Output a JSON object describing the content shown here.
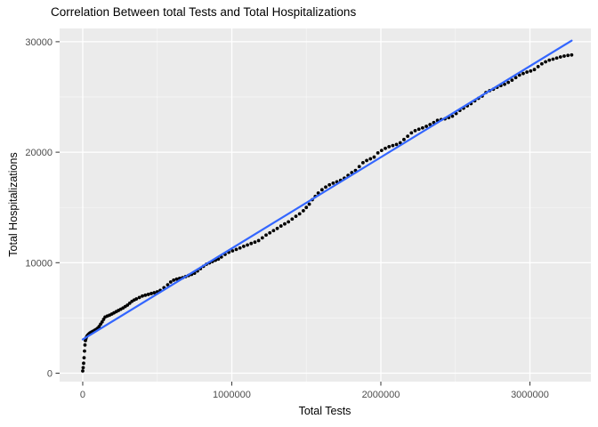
{
  "figure": {
    "title": "Correlation Between total Tests and Total Hospitalizations",
    "x_axis_title": "Total Tests",
    "y_axis_title": "Total Hospitalizations"
  },
  "colors": {
    "panel_bg": "#EBEBEB",
    "grid_major": "#FFFFFF",
    "grid_minor": "#F7F7F7",
    "point": "#000000",
    "trend_line": "#3366FF",
    "tick_text": "#4D4D4D",
    "tick_mark": "#333333"
  },
  "chart_data": {
    "type": "scatter",
    "title": "Correlation Between total Tests and Total Hospitalizations",
    "xlabel": "Total Tests",
    "ylabel": "Total Hospitalizations",
    "grid": true,
    "legend": false,
    "xlim": [
      -155000,
      3409000
    ],
    "ylim": [
      -765,
      31200
    ],
    "x_ticks": [
      {
        "value": 0,
        "label": "0"
      },
      {
        "value": 1000000,
        "label": "1000000"
      },
      {
        "value": 2000000,
        "label": "2000000"
      },
      {
        "value": 3000000,
        "label": "3000000"
      }
    ],
    "y_ticks": [
      {
        "value": 0,
        "label": "0"
      },
      {
        "value": 10000,
        "label": "10000"
      },
      {
        "value": 20000,
        "label": "20000"
      },
      {
        "value": 30000,
        "label": "30000"
      }
    ],
    "x_minor": [
      500000,
      1500000,
      2500000
    ],
    "y_minor": [
      5000,
      15000,
      25000
    ],
    "trend_line": {
      "start": [
        0,
        3050
      ],
      "end": [
        3280000,
        30100
      ]
    },
    "points": [
      [
        0,
        200
      ],
      [
        3000,
        500
      ],
      [
        6000,
        900
      ],
      [
        9000,
        1400
      ],
      [
        12000,
        2000
      ],
      [
        15000,
        2550
      ],
      [
        18000,
        2950
      ],
      [
        21000,
        3120
      ],
      [
        25000,
        3260
      ],
      [
        30000,
        3380
      ],
      [
        35000,
        3460
      ],
      [
        40000,
        3530
      ],
      [
        45000,
        3590
      ],
      [
        50000,
        3650
      ],
      [
        60000,
        3730
      ],
      [
        70000,
        3800
      ],
      [
        80000,
        3880
      ],
      [
        90000,
        3960
      ],
      [
        100000,
        4060
      ],
      [
        110000,
        4220
      ],
      [
        120000,
        4440
      ],
      [
        130000,
        4640
      ],
      [
        140000,
        4870
      ],
      [
        150000,
        5080
      ],
      [
        165000,
        5170
      ],
      [
        180000,
        5250
      ],
      [
        195000,
        5350
      ],
      [
        210000,
        5460
      ],
      [
        225000,
        5570
      ],
      [
        240000,
        5680
      ],
      [
        255000,
        5790
      ],
      [
        270000,
        5900
      ],
      [
        285000,
        6030
      ],
      [
        300000,
        6160
      ],
      [
        315000,
        6330
      ],
      [
        330000,
        6500
      ],
      [
        345000,
        6620
      ],
      [
        360000,
        6720
      ],
      [
        380000,
        6850
      ],
      [
        400000,
        6980
      ],
      [
        420000,
        7060
      ],
      [
        440000,
        7130
      ],
      [
        460000,
        7210
      ],
      [
        480000,
        7280
      ],
      [
        500000,
        7370
      ],
      [
        520000,
        7500
      ],
      [
        545000,
        7740
      ],
      [
        570000,
        8000
      ],
      [
        590000,
        8250
      ],
      [
        610000,
        8420
      ],
      [
        630000,
        8510
      ],
      [
        650000,
        8580
      ],
      [
        670000,
        8640
      ],
      [
        690000,
        8740
      ],
      [
        710000,
        8840
      ],
      [
        730000,
        8940
      ],
      [
        750000,
        9050
      ],
      [
        770000,
        9250
      ],
      [
        790000,
        9460
      ],
      [
        810000,
        9670
      ],
      [
        830000,
        9860
      ],
      [
        850000,
        9980
      ],
      [
        870000,
        10100
      ],
      [
        890000,
        10220
      ],
      [
        910000,
        10330
      ],
      [
        930000,
        10520
      ],
      [
        955000,
        10750
      ],
      [
        980000,
        10940
      ],
      [
        1005000,
        11070
      ],
      [
        1030000,
        11200
      ],
      [
        1055000,
        11330
      ],
      [
        1080000,
        11480
      ],
      [
        1105000,
        11600
      ],
      [
        1130000,
        11740
      ],
      [
        1155000,
        11860
      ],
      [
        1180000,
        12000
      ],
      [
        1205000,
        12250
      ],
      [
        1230000,
        12500
      ],
      [
        1255000,
        12700
      ],
      [
        1280000,
        12900
      ],
      [
        1305000,
        13100
      ],
      [
        1330000,
        13320
      ],
      [
        1355000,
        13510
      ],
      [
        1380000,
        13700
      ],
      [
        1405000,
        13950
      ],
      [
        1430000,
        14200
      ],
      [
        1455000,
        14420
      ],
      [
        1480000,
        14700
      ],
      [
        1500000,
        15000
      ],
      [
        1520000,
        15300
      ],
      [
        1540000,
        15700
      ],
      [
        1560000,
        16000
      ],
      [
        1580000,
        16300
      ],
      [
        1605000,
        16600
      ],
      [
        1630000,
        16850
      ],
      [
        1655000,
        17050
      ],
      [
        1680000,
        17200
      ],
      [
        1705000,
        17320
      ],
      [
        1730000,
        17460
      ],
      [
        1755000,
        17650
      ],
      [
        1780000,
        17900
      ],
      [
        1805000,
        18150
      ],
      [
        1830000,
        18350
      ],
      [
        1855000,
        18700
      ],
      [
        1880000,
        19050
      ],
      [
        1905000,
        19250
      ],
      [
        1930000,
        19400
      ],
      [
        1955000,
        19560
      ],
      [
        1980000,
        19940
      ],
      [
        2005000,
        20160
      ],
      [
        2030000,
        20350
      ],
      [
        2055000,
        20500
      ],
      [
        2080000,
        20600
      ],
      [
        2105000,
        20700
      ],
      [
        2130000,
        20850
      ],
      [
        2155000,
        21150
      ],
      [
        2180000,
        21450
      ],
      [
        2205000,
        21750
      ],
      [
        2230000,
        21950
      ],
      [
        2255000,
        22080
      ],
      [
        2280000,
        22200
      ],
      [
        2305000,
        22340
      ],
      [
        2330000,
        22500
      ],
      [
        2355000,
        22680
      ],
      [
        2380000,
        22880
      ],
      [
        2405000,
        22960
      ],
      [
        2430000,
        23020
      ],
      [
        2455000,
        23130
      ],
      [
        2480000,
        23260
      ],
      [
        2505000,
        23500
      ],
      [
        2530000,
        23780
      ],
      [
        2555000,
        23980
      ],
      [
        2580000,
        24200
      ],
      [
        2605000,
        24400
      ],
      [
        2630000,
        24650
      ],
      [
        2655000,
        24880
      ],
      [
        2680000,
        25080
      ],
      [
        2705000,
        25400
      ],
      [
        2730000,
        25570
      ],
      [
        2755000,
        25700
      ],
      [
        2780000,
        25880
      ],
      [
        2805000,
        26030
      ],
      [
        2830000,
        26150
      ],
      [
        2855000,
        26320
      ],
      [
        2880000,
        26520
      ],
      [
        2905000,
        26750
      ],
      [
        2930000,
        26980
      ],
      [
        2955000,
        27120
      ],
      [
        2980000,
        27250
      ],
      [
        3005000,
        27350
      ],
      [
        3030000,
        27480
      ],
      [
        3055000,
        27750
      ],
      [
        3080000,
        28000
      ],
      [
        3105000,
        28180
      ],
      [
        3130000,
        28330
      ],
      [
        3155000,
        28420
      ],
      [
        3180000,
        28520
      ],
      [
        3205000,
        28620
      ],
      [
        3230000,
        28700
      ],
      [
        3255000,
        28760
      ],
      [
        3280000,
        28800
      ]
    ]
  }
}
